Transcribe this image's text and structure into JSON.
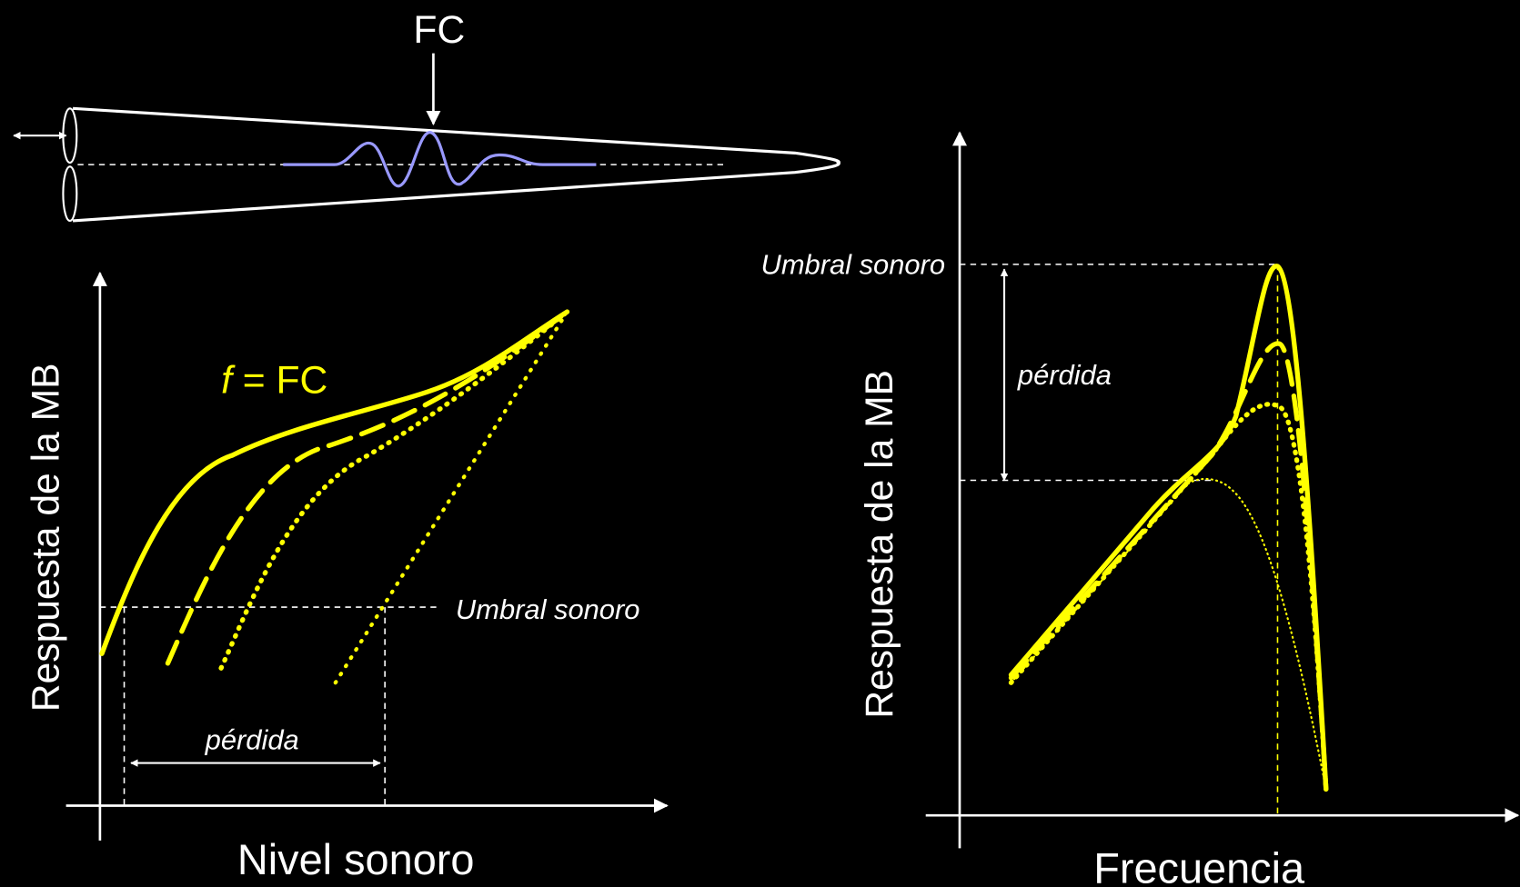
{
  "cochlea": {
    "label": "FC"
  },
  "left_panel": {
    "y_label": "Respuesta de la MB",
    "x_label": "Nivel sonoro",
    "curve_label": {
      "variable": "f",
      "rest": "= FC"
    },
    "threshold_label": "Umbral sonoro",
    "loss_label": "pérdida"
  },
  "right_panel": {
    "y_label": "Respuesta de la MB",
    "x_label": "Frecuencia",
    "threshold_label": "Umbral sonoro",
    "loss_label": "pérdida"
  }
}
